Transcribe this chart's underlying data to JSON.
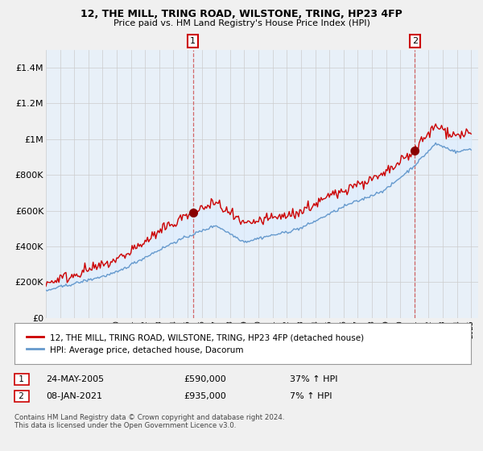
{
  "title1": "12, THE MILL, TRING ROAD, WILSTONE, TRING, HP23 4FP",
  "title2": "Price paid vs. HM Land Registry's House Price Index (HPI)",
  "legend_line1": "12, THE MILL, TRING ROAD, WILSTONE, TRING, HP23 4FP (detached house)",
  "legend_line2": "HPI: Average price, detached house, Dacorum",
  "sale1_label": "1",
  "sale1_date": "24-MAY-2005",
  "sale1_price": "£590,000",
  "sale1_hpi": "37% ↑ HPI",
  "sale2_label": "2",
  "sale2_date": "08-JAN-2021",
  "sale2_price": "£935,000",
  "sale2_hpi": "7% ↑ HPI",
  "footer": "Contains HM Land Registry data © Crown copyright and database right 2024.\nThis data is licensed under the Open Government Licence v3.0.",
  "xlim_start": 1995.0,
  "xlim_end": 2025.5,
  "ylim_bottom": 0,
  "ylim_top": 1500000,
  "yticks": [
    0,
    200000,
    400000,
    600000,
    800000,
    1000000,
    1200000,
    1400000
  ],
  "ytick_labels": [
    "£0",
    "£200K",
    "£400K",
    "£600K",
    "£800K",
    "£1M",
    "£1.2M",
    "£1.4M"
  ],
  "sale1_x": 2005.38,
  "sale1_y": 590000,
  "sale2_x": 2021.03,
  "sale2_y": 935000,
  "vline1_x": 2005.38,
  "vline2_x": 2021.03,
  "property_color": "#cc0000",
  "hpi_color": "#6699cc",
  "fill_color": "#ddeeff",
  "background_color": "#f0f0f0",
  "plot_bg_color": "#e8f0f8",
  "vline_color": "#cc4444"
}
